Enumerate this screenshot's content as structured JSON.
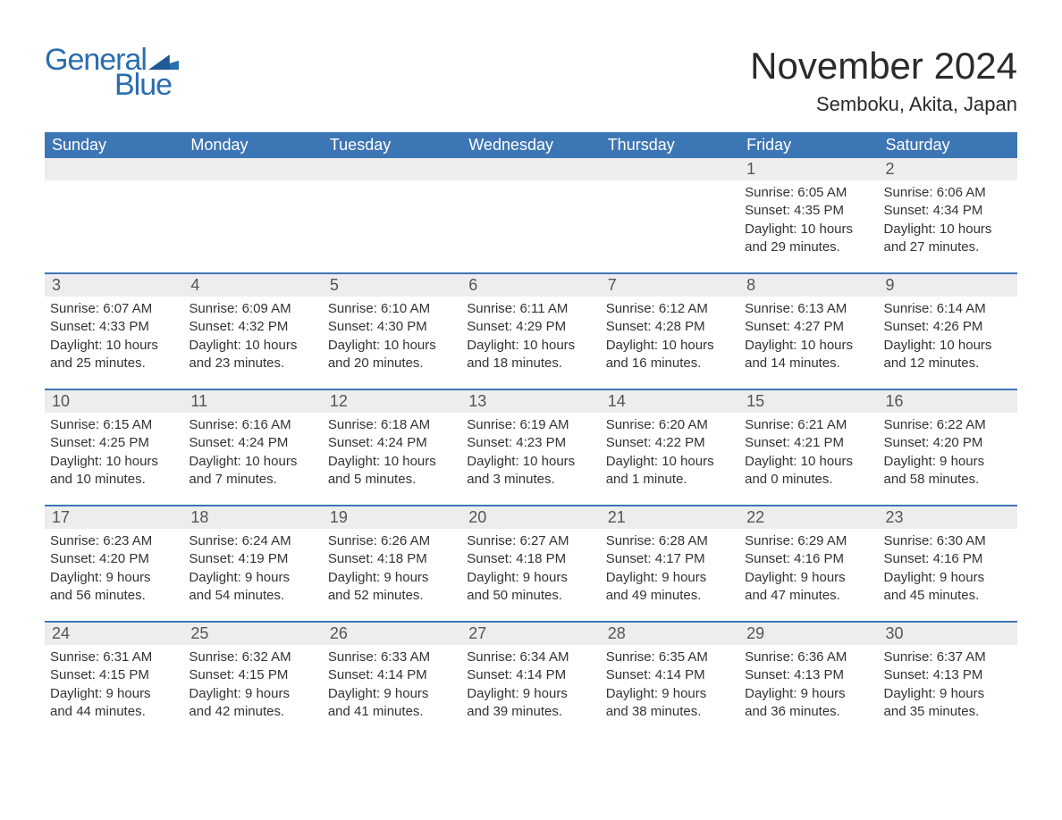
{
  "logo": {
    "text_general": "General",
    "text_blue": "Blue",
    "color": "#2a6db0"
  },
  "title": "November 2024",
  "location": "Semboku, Akita, Japan",
  "colors": {
    "header_bg": "#3d76b4",
    "header_text": "#ffffff",
    "daynum_bg": "#ededed",
    "border": "#3d76b4",
    "body_text": "#333333"
  },
  "typography": {
    "title_fontsize": 42,
    "location_fontsize": 22,
    "header_fontsize": 18,
    "daynum_fontsize": 18,
    "body_fontsize": 15
  },
  "day_labels": [
    "Sunday",
    "Monday",
    "Tuesday",
    "Wednesday",
    "Thursday",
    "Friday",
    "Saturday"
  ],
  "weeks": [
    [
      {
        "empty": true
      },
      {
        "empty": true
      },
      {
        "empty": true
      },
      {
        "empty": true
      },
      {
        "empty": true
      },
      {
        "num": "1",
        "sunrise": "Sunrise: 6:05 AM",
        "sunset": "Sunset: 4:35 PM",
        "daylight1": "Daylight: 10 hours",
        "daylight2": "and 29 minutes."
      },
      {
        "num": "2",
        "sunrise": "Sunrise: 6:06 AM",
        "sunset": "Sunset: 4:34 PM",
        "daylight1": "Daylight: 10 hours",
        "daylight2": "and 27 minutes."
      }
    ],
    [
      {
        "num": "3",
        "sunrise": "Sunrise: 6:07 AM",
        "sunset": "Sunset: 4:33 PM",
        "daylight1": "Daylight: 10 hours",
        "daylight2": "and 25 minutes."
      },
      {
        "num": "4",
        "sunrise": "Sunrise: 6:09 AM",
        "sunset": "Sunset: 4:32 PM",
        "daylight1": "Daylight: 10 hours",
        "daylight2": "and 23 minutes."
      },
      {
        "num": "5",
        "sunrise": "Sunrise: 6:10 AM",
        "sunset": "Sunset: 4:30 PM",
        "daylight1": "Daylight: 10 hours",
        "daylight2": "and 20 minutes."
      },
      {
        "num": "6",
        "sunrise": "Sunrise: 6:11 AM",
        "sunset": "Sunset: 4:29 PM",
        "daylight1": "Daylight: 10 hours",
        "daylight2": "and 18 minutes."
      },
      {
        "num": "7",
        "sunrise": "Sunrise: 6:12 AM",
        "sunset": "Sunset: 4:28 PM",
        "daylight1": "Daylight: 10 hours",
        "daylight2": "and 16 minutes."
      },
      {
        "num": "8",
        "sunrise": "Sunrise: 6:13 AM",
        "sunset": "Sunset: 4:27 PM",
        "daylight1": "Daylight: 10 hours",
        "daylight2": "and 14 minutes."
      },
      {
        "num": "9",
        "sunrise": "Sunrise: 6:14 AM",
        "sunset": "Sunset: 4:26 PM",
        "daylight1": "Daylight: 10 hours",
        "daylight2": "and 12 minutes."
      }
    ],
    [
      {
        "num": "10",
        "sunrise": "Sunrise: 6:15 AM",
        "sunset": "Sunset: 4:25 PM",
        "daylight1": "Daylight: 10 hours",
        "daylight2": "and 10 minutes."
      },
      {
        "num": "11",
        "sunrise": "Sunrise: 6:16 AM",
        "sunset": "Sunset: 4:24 PM",
        "daylight1": "Daylight: 10 hours",
        "daylight2": "and 7 minutes."
      },
      {
        "num": "12",
        "sunrise": "Sunrise: 6:18 AM",
        "sunset": "Sunset: 4:24 PM",
        "daylight1": "Daylight: 10 hours",
        "daylight2": "and 5 minutes."
      },
      {
        "num": "13",
        "sunrise": "Sunrise: 6:19 AM",
        "sunset": "Sunset: 4:23 PM",
        "daylight1": "Daylight: 10 hours",
        "daylight2": "and 3 minutes."
      },
      {
        "num": "14",
        "sunrise": "Sunrise: 6:20 AM",
        "sunset": "Sunset: 4:22 PM",
        "daylight1": "Daylight: 10 hours",
        "daylight2": "and 1 minute."
      },
      {
        "num": "15",
        "sunrise": "Sunrise: 6:21 AM",
        "sunset": "Sunset: 4:21 PM",
        "daylight1": "Daylight: 10 hours",
        "daylight2": "and 0 minutes."
      },
      {
        "num": "16",
        "sunrise": "Sunrise: 6:22 AM",
        "sunset": "Sunset: 4:20 PM",
        "daylight1": "Daylight: 9 hours",
        "daylight2": "and 58 minutes."
      }
    ],
    [
      {
        "num": "17",
        "sunrise": "Sunrise: 6:23 AM",
        "sunset": "Sunset: 4:20 PM",
        "daylight1": "Daylight: 9 hours",
        "daylight2": "and 56 minutes."
      },
      {
        "num": "18",
        "sunrise": "Sunrise: 6:24 AM",
        "sunset": "Sunset: 4:19 PM",
        "daylight1": "Daylight: 9 hours",
        "daylight2": "and 54 minutes."
      },
      {
        "num": "19",
        "sunrise": "Sunrise: 6:26 AM",
        "sunset": "Sunset: 4:18 PM",
        "daylight1": "Daylight: 9 hours",
        "daylight2": "and 52 minutes."
      },
      {
        "num": "20",
        "sunrise": "Sunrise: 6:27 AM",
        "sunset": "Sunset: 4:18 PM",
        "daylight1": "Daylight: 9 hours",
        "daylight2": "and 50 minutes."
      },
      {
        "num": "21",
        "sunrise": "Sunrise: 6:28 AM",
        "sunset": "Sunset: 4:17 PM",
        "daylight1": "Daylight: 9 hours",
        "daylight2": "and 49 minutes."
      },
      {
        "num": "22",
        "sunrise": "Sunrise: 6:29 AM",
        "sunset": "Sunset: 4:16 PM",
        "daylight1": "Daylight: 9 hours",
        "daylight2": "and 47 minutes."
      },
      {
        "num": "23",
        "sunrise": "Sunrise: 6:30 AM",
        "sunset": "Sunset: 4:16 PM",
        "daylight1": "Daylight: 9 hours",
        "daylight2": "and 45 minutes."
      }
    ],
    [
      {
        "num": "24",
        "sunrise": "Sunrise: 6:31 AM",
        "sunset": "Sunset: 4:15 PM",
        "daylight1": "Daylight: 9 hours",
        "daylight2": "and 44 minutes."
      },
      {
        "num": "25",
        "sunrise": "Sunrise: 6:32 AM",
        "sunset": "Sunset: 4:15 PM",
        "daylight1": "Daylight: 9 hours",
        "daylight2": "and 42 minutes."
      },
      {
        "num": "26",
        "sunrise": "Sunrise: 6:33 AM",
        "sunset": "Sunset: 4:14 PM",
        "daylight1": "Daylight: 9 hours",
        "daylight2": "and 41 minutes."
      },
      {
        "num": "27",
        "sunrise": "Sunrise: 6:34 AM",
        "sunset": "Sunset: 4:14 PM",
        "daylight1": "Daylight: 9 hours",
        "daylight2": "and 39 minutes."
      },
      {
        "num": "28",
        "sunrise": "Sunrise: 6:35 AM",
        "sunset": "Sunset: 4:14 PM",
        "daylight1": "Daylight: 9 hours",
        "daylight2": "and 38 minutes."
      },
      {
        "num": "29",
        "sunrise": "Sunrise: 6:36 AM",
        "sunset": "Sunset: 4:13 PM",
        "daylight1": "Daylight: 9 hours",
        "daylight2": "and 36 minutes."
      },
      {
        "num": "30",
        "sunrise": "Sunrise: 6:37 AM",
        "sunset": "Sunset: 4:13 PM",
        "daylight1": "Daylight: 9 hours",
        "daylight2": "and 35 minutes."
      }
    ]
  ]
}
